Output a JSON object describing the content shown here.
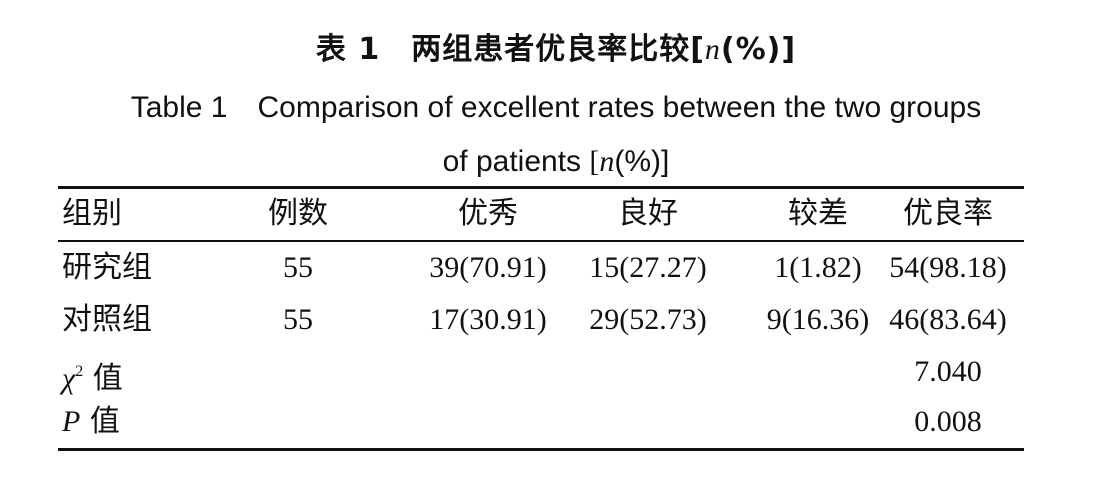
{
  "caption": {
    "cn_prefix": "表 1　两组患者优良率比较[",
    "cn_n": "n",
    "cn_suffix": "(%)]",
    "en_line1": "Table 1　Comparison of excellent rates between the two groups",
    "en_line2_prefix": "of patients ",
    "en_line2_bracket_open": "[",
    "en_line2_n": "n",
    "en_line2_suffix": "(%)]"
  },
  "table": {
    "headers": [
      "组别",
      "例数",
      "优秀",
      "良好",
      "较差",
      "优良率"
    ],
    "rows": [
      {
        "group": "研究组",
        "count": "55",
        "excellent": "39(70.91)",
        "good": "15(27.27)",
        "poor": "1(1.82)",
        "rate": "54(98.18)"
      },
      {
        "group": "对照组",
        "count": "55",
        "excellent": "17(30.91)",
        "good": "29(52.73)",
        "poor": "9(16.36)",
        "rate": "46(83.64)"
      }
    ],
    "chi_row": {
      "symbol": "χ",
      "superscript": "2",
      "label_suffix": " 值",
      "value": "7.040"
    },
    "p_row": {
      "symbol": "P",
      "label_suffix": " 值",
      "value": "0.008"
    }
  }
}
